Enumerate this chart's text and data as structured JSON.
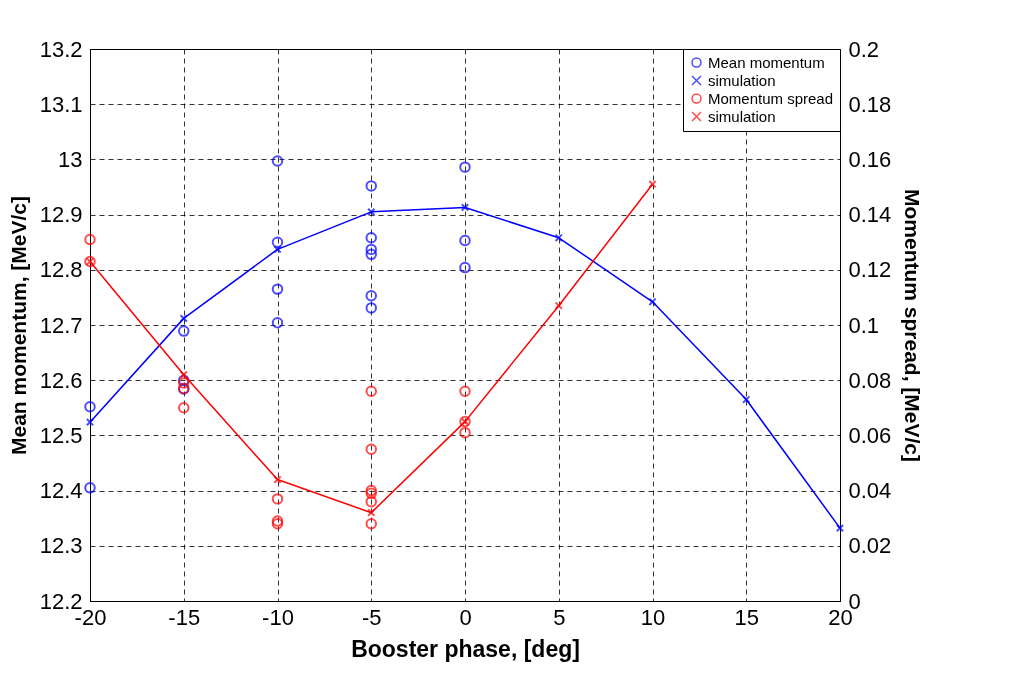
{
  "chart_data": {
    "type": "scatter",
    "xlabel": "Booster phase, [deg]",
    "ylabel": "Mean momentum, [MeV/c]",
    "y2label": "Momentum spread, [MeV/c]",
    "xlim": [
      -20,
      20
    ],
    "xticks": [
      -20,
      -15,
      -10,
      -5,
      0,
      5,
      10,
      15,
      20
    ],
    "ylim": [
      12.2,
      13.2
    ],
    "yticks": [
      12.2,
      12.3,
      12.4,
      12.5,
      12.6,
      12.7,
      12.8,
      12.9,
      13,
      13.1,
      13.2
    ],
    "y2lim": [
      0,
      0.2
    ],
    "y2ticks": [
      0,
      0.02,
      0.04,
      0.06,
      0.08,
      0.1,
      0.12,
      0.14,
      0.16,
      0.18,
      0.2
    ],
    "grid": true,
    "legend": "top right",
    "series": [
      {
        "name": "Mean momentum",
        "marker": "circle",
        "color": "#0000ff",
        "x": [
          -20,
          -20,
          -15,
          -15,
          -15,
          -10,
          -10,
          -10,
          -10,
          -5,
          -5,
          -5,
          -5,
          -5,
          -5,
          0,
          0,
          0
        ],
        "values": [
          12.552,
          12.405,
          12.689,
          12.6,
          12.584,
          12.997,
          12.85,
          12.765,
          12.704,
          12.952,
          12.858,
          12.837,
          12.828,
          12.753,
          12.731,
          12.986,
          12.853,
          12.804
        ]
      },
      {
        "name": "simulation",
        "type": "line",
        "marker": "cross",
        "line_style": "solid",
        "color": "#0000ff",
        "x": [
          -20,
          -15,
          -10,
          -5,
          0,
          5,
          10,
          15,
          20
        ],
        "values": [
          12.524,
          12.712,
          12.837,
          12.905,
          12.913,
          12.858,
          12.742,
          12.565,
          12.332
        ]
      },
      {
        "name": "Momentum spread",
        "marker": "circle",
        "axis": "y2",
        "color": "#ff0000",
        "x": [
          -20,
          -20,
          -15,
          -15,
          -15,
          -10,
          -10,
          -10,
          -5,
          -5,
          -5,
          -5,
          -5,
          -5,
          0,
          0,
          0
        ],
        "values": [
          0.131,
          0.123,
          0.079,
          0.077,
          0.07,
          0.037,
          0.029,
          0.028,
          0.076,
          0.055,
          0.04,
          0.039,
          0.036,
          0.028,
          0.076,
          0.065,
          0.061
        ]
      },
      {
        "name": "simulation",
        "type": "line",
        "marker": "cross",
        "line_style": "solid",
        "axis": "y2",
        "color": "#ff0000",
        "x": [
          -20,
          -15,
          -10,
          -5,
          0,
          5,
          10
        ],
        "values": [
          0.123,
          0.082,
          0.044,
          0.032,
          0.065,
          0.107,
          0.151
        ]
      }
    ]
  }
}
